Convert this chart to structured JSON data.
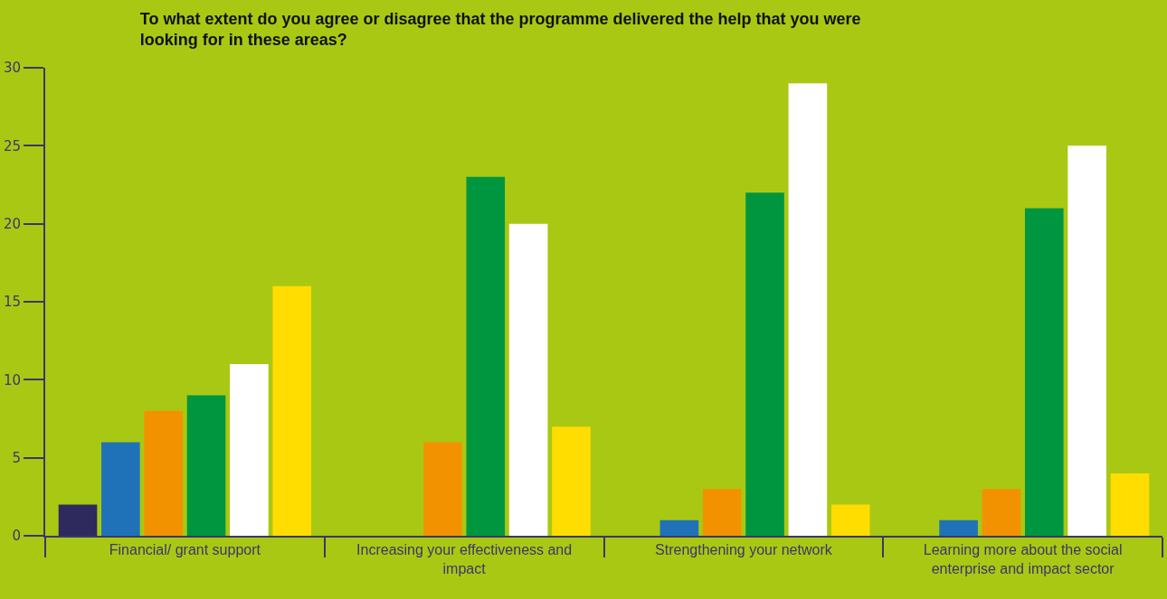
{
  "chart_data": {
    "type": "bar",
    "title": "To what extent do you agree or disagree that the programme delivered the help that you were looking for in these areas?",
    "categories": [
      "Financial/ grant support",
      "Increasing your effectiveness and impact",
      "Strengthening your network",
      "Learning more about the social enterprise and impact sector"
    ],
    "series": [
      {
        "color": "#2e2a5e",
        "values": [
          2,
          0,
          0,
          0
        ]
      },
      {
        "color": "#1f72b8",
        "values": [
          6,
          0,
          1,
          1
        ]
      },
      {
        "color": "#f39200",
        "values": [
          8,
          6,
          3,
          3
        ]
      },
      {
        "color": "#009640",
        "values": [
          9,
          23,
          22,
          21
        ]
      },
      {
        "color": "#ffffff",
        "values": [
          11,
          20,
          29,
          25
        ]
      },
      {
        "color": "#ffdd00",
        "values": [
          16,
          7,
          2,
          4
        ]
      }
    ],
    "ylim": [
      0,
      30
    ],
    "yticks": [
      0,
      5,
      10,
      15,
      20,
      25,
      30
    ],
    "grid": false
  }
}
